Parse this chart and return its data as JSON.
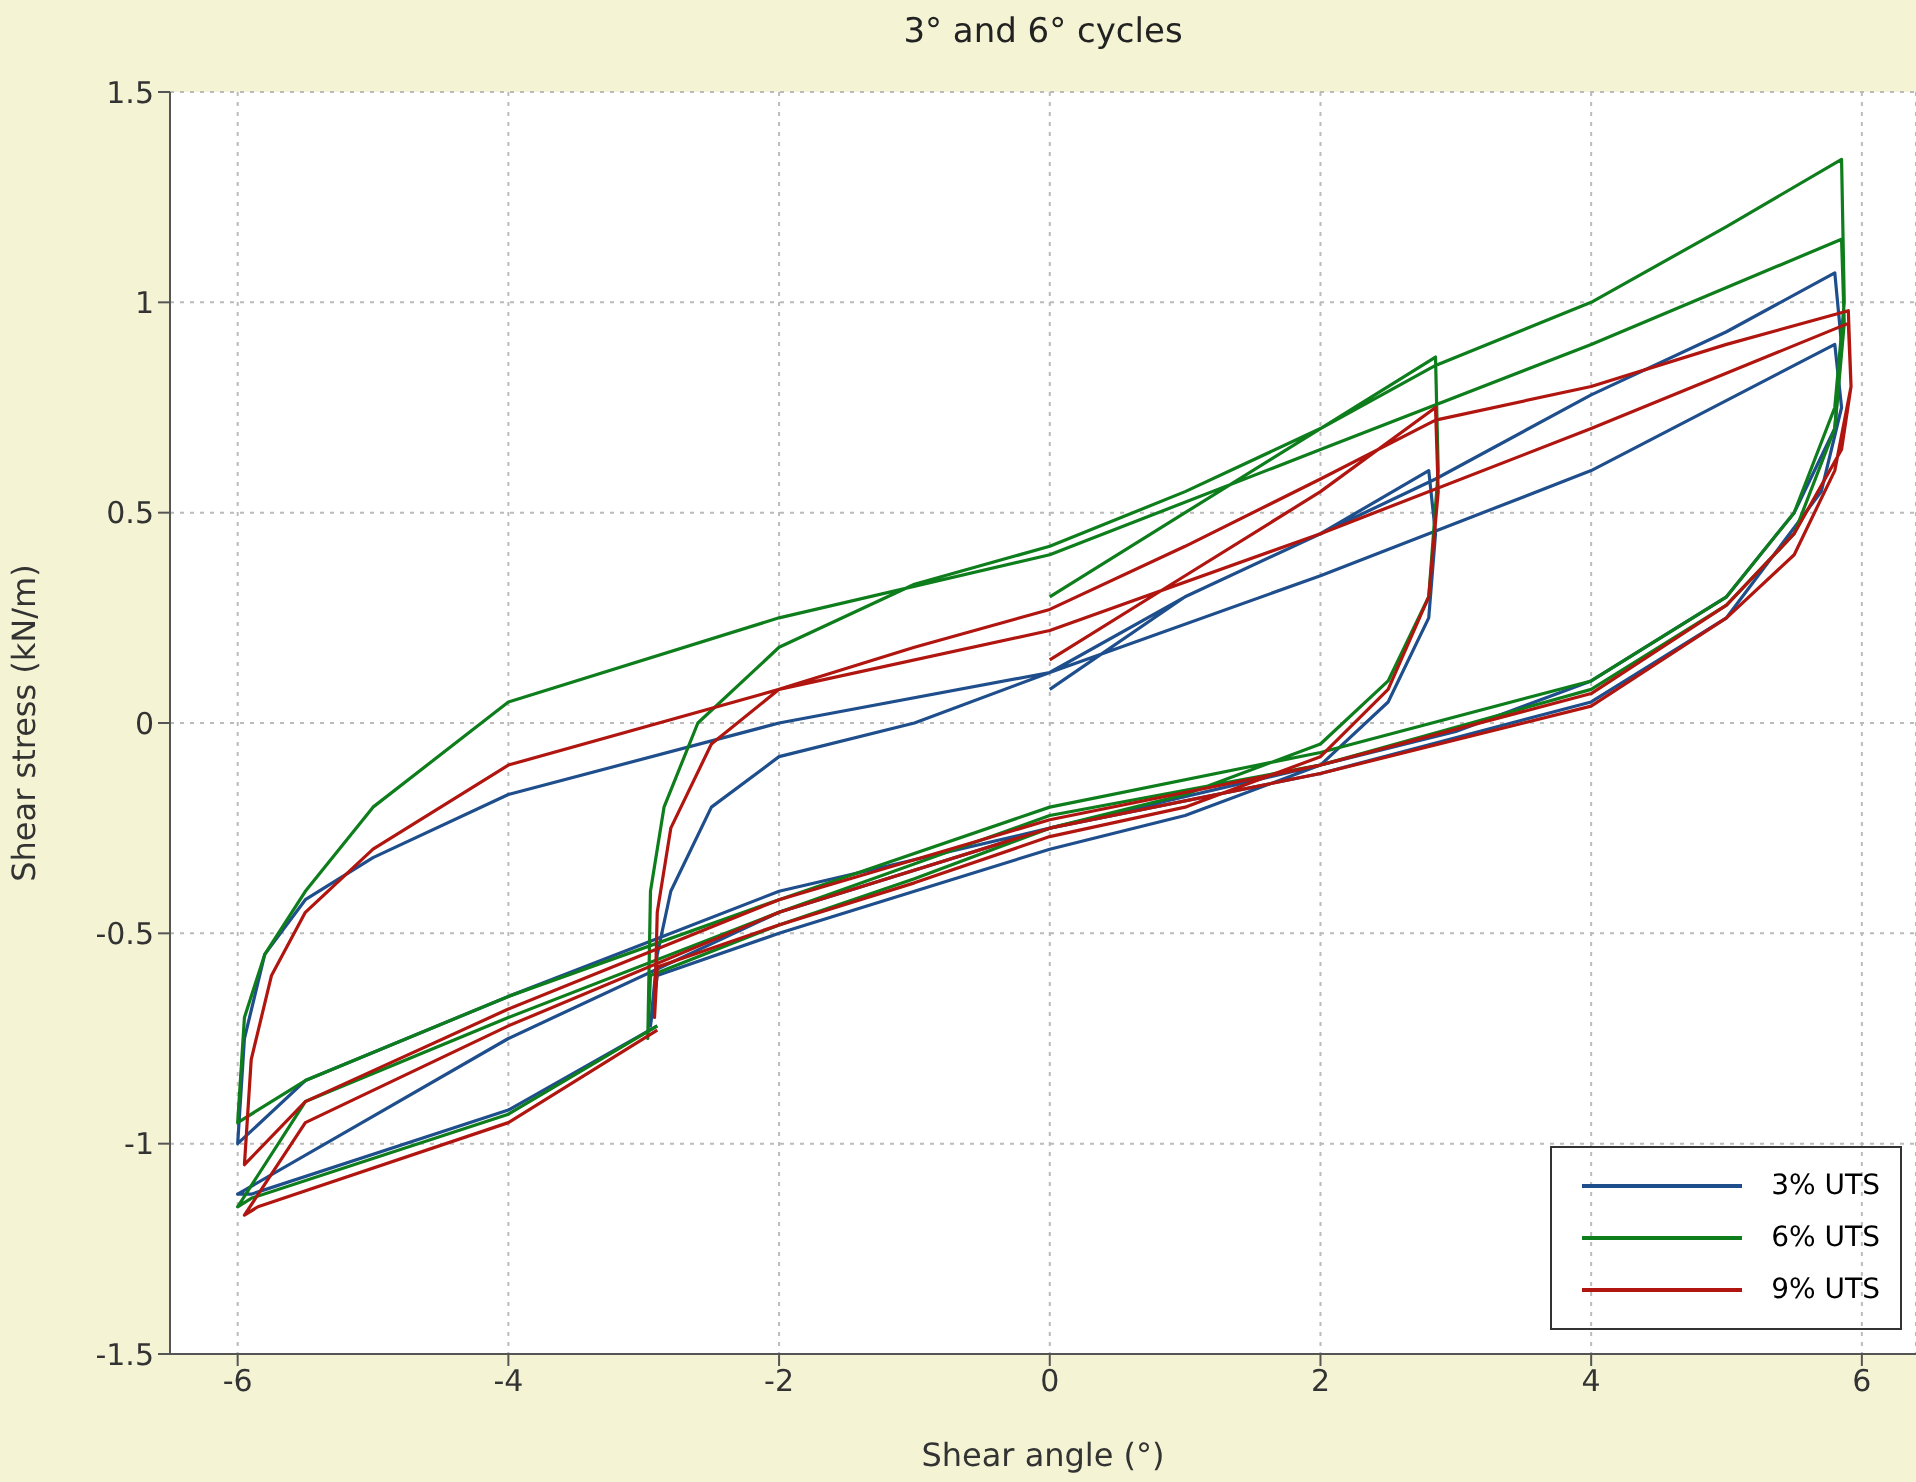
{
  "chart_data": {
    "type": "line",
    "title": "3° and 6° cycles",
    "xlabel": "Shear angle (°)",
    "ylabel": "Shear stress (kN/m)",
    "xlim": [
      -6.5,
      6.4
    ],
    "xticks": [
      -6,
      -4,
      -2,
      0,
      2,
      4,
      6
    ],
    "ylim": [
      -1.5,
      1.5
    ],
    "yticks": [
      -1.5,
      -1,
      -0.5,
      0,
      0.5,
      1,
      1.5
    ],
    "grid": true,
    "legend": "bottom right",
    "marker": "none",
    "line_style": "solid",
    "series": [
      {
        "name": "3% UTS",
        "color": "#1f4e8c",
        "x": [
          0,
          1,
          2,
          2.8,
          2.85,
          2.8,
          2.5,
          2,
          1,
          0,
          -1,
          -2,
          -2.9,
          -2.95,
          -2.9,
          -2.8,
          -2.5,
          -2,
          -1,
          0,
          1,
          2,
          2.85,
          4,
          5,
          5.8,
          5.85,
          5.8,
          5.5,
          5,
          4,
          3,
          2,
          0,
          -2,
          -4,
          -5.5,
          -6,
          -5.95,
          -5.8,
          -5.5,
          -5,
          -4,
          -2,
          0,
          2,
          4,
          5.8,
          5.85,
          5.7,
          5,
          4,
          2,
          0,
          -2,
          -4,
          -6,
          -5.9,
          -4,
          -2.9
        ],
        "values": [
          0.08,
          0.3,
          0.45,
          0.6,
          0.45,
          0.25,
          0.05,
          -0.1,
          -0.22,
          -0.3,
          -0.4,
          -0.5,
          -0.6,
          -0.72,
          -0.55,
          -0.4,
          -0.2,
          -0.08,
          0.0,
          0.12,
          0.3,
          0.45,
          0.58,
          0.78,
          0.93,
          1.07,
          0.9,
          0.7,
          0.5,
          0.3,
          0.1,
          -0.02,
          -0.1,
          -0.25,
          -0.4,
          -0.65,
          -0.85,
          -1.0,
          -0.75,
          -0.55,
          -0.42,
          -0.32,
          -0.17,
          0.0,
          0.12,
          0.35,
          0.6,
          0.9,
          0.75,
          0.55,
          0.25,
          0.05,
          -0.12,
          -0.25,
          -0.45,
          -0.75,
          -1.12,
          -1.12,
          -0.92,
          -0.72
        ]
      },
      {
        "name": "6% UTS",
        "color": "#0e7d1c",
        "x": [
          0,
          1,
          2,
          2.85,
          2.87,
          2.8,
          2.5,
          2,
          1,
          0,
          -1,
          -2,
          -2.95,
          -2.97,
          -2.95,
          -2.85,
          -2.6,
          -2,
          -1,
          0,
          1,
          2,
          2.85,
          4,
          5,
          5.85,
          5.87,
          5.8,
          5.5,
          5,
          4,
          2,
          0,
          -2,
          -4,
          -5.5,
          -6,
          -5.95,
          -5.8,
          -5.5,
          -5,
          -4,
          -2,
          0,
          2,
          4,
          5.85,
          5.87,
          5.8,
          5.5,
          5,
          4,
          2,
          0,
          -2,
          -4,
          -5.5,
          -6,
          -5.9,
          -4,
          -2.9
        ],
        "values": [
          0.3,
          0.5,
          0.7,
          0.87,
          0.6,
          0.3,
          0.1,
          -0.05,
          -0.17,
          -0.25,
          -0.37,
          -0.48,
          -0.6,
          -0.75,
          -0.4,
          -0.2,
          0.0,
          0.18,
          0.33,
          0.42,
          0.55,
          0.7,
          0.85,
          1.0,
          1.18,
          1.34,
          1.0,
          0.75,
          0.5,
          0.3,
          0.1,
          -0.07,
          -0.2,
          -0.42,
          -0.65,
          -0.85,
          -0.95,
          -0.7,
          -0.55,
          -0.4,
          -0.2,
          0.05,
          0.25,
          0.4,
          0.65,
          0.9,
          1.15,
          0.95,
          0.7,
          0.45,
          0.28,
          0.08,
          -0.1,
          -0.22,
          -0.45,
          -0.7,
          -0.9,
          -1.15,
          -1.13,
          -0.93,
          -0.72
        ]
      },
      {
        "name": "9% UTS",
        "color": "#b0160f",
        "x": [
          0,
          1,
          2,
          2.85,
          2.87,
          2.8,
          2.5,
          2,
          1,
          0,
          -1,
          -2,
          -2.9,
          -2.92,
          -2.9,
          -2.8,
          -2.5,
          -2,
          -1,
          0,
          1,
          2,
          2.85,
          4,
          5,
          5.9,
          5.92,
          5.85,
          5.5,
          5,
          4,
          2,
          0,
          -2,
          -4,
          -5.5,
          -5.95,
          -5.9,
          -5.75,
          -5.5,
          -5,
          -4,
          -2,
          0,
          2,
          4,
          5.9,
          5.92,
          5.8,
          5.5,
          5,
          4,
          2,
          0,
          -2,
          -4,
          -5.5,
          -5.95,
          -5.85,
          -4,
          -2.9
        ],
        "values": [
          0.15,
          0.35,
          0.55,
          0.75,
          0.55,
          0.3,
          0.08,
          -0.08,
          -0.2,
          -0.27,
          -0.38,
          -0.48,
          -0.58,
          -0.7,
          -0.45,
          -0.25,
          -0.05,
          0.08,
          0.18,
          0.27,
          0.42,
          0.58,
          0.72,
          0.8,
          0.9,
          0.98,
          0.8,
          0.65,
          0.45,
          0.28,
          0.07,
          -0.1,
          -0.23,
          -0.42,
          -0.68,
          -0.9,
          -1.05,
          -0.8,
          -0.6,
          -0.45,
          -0.3,
          -0.1,
          0.08,
          0.22,
          0.45,
          0.7,
          0.95,
          0.8,
          0.6,
          0.4,
          0.25,
          0.04,
          -0.12,
          -0.25,
          -0.45,
          -0.72,
          -0.95,
          -1.17,
          -1.15,
          -0.95,
          -0.73
        ]
      }
    ]
  }
}
